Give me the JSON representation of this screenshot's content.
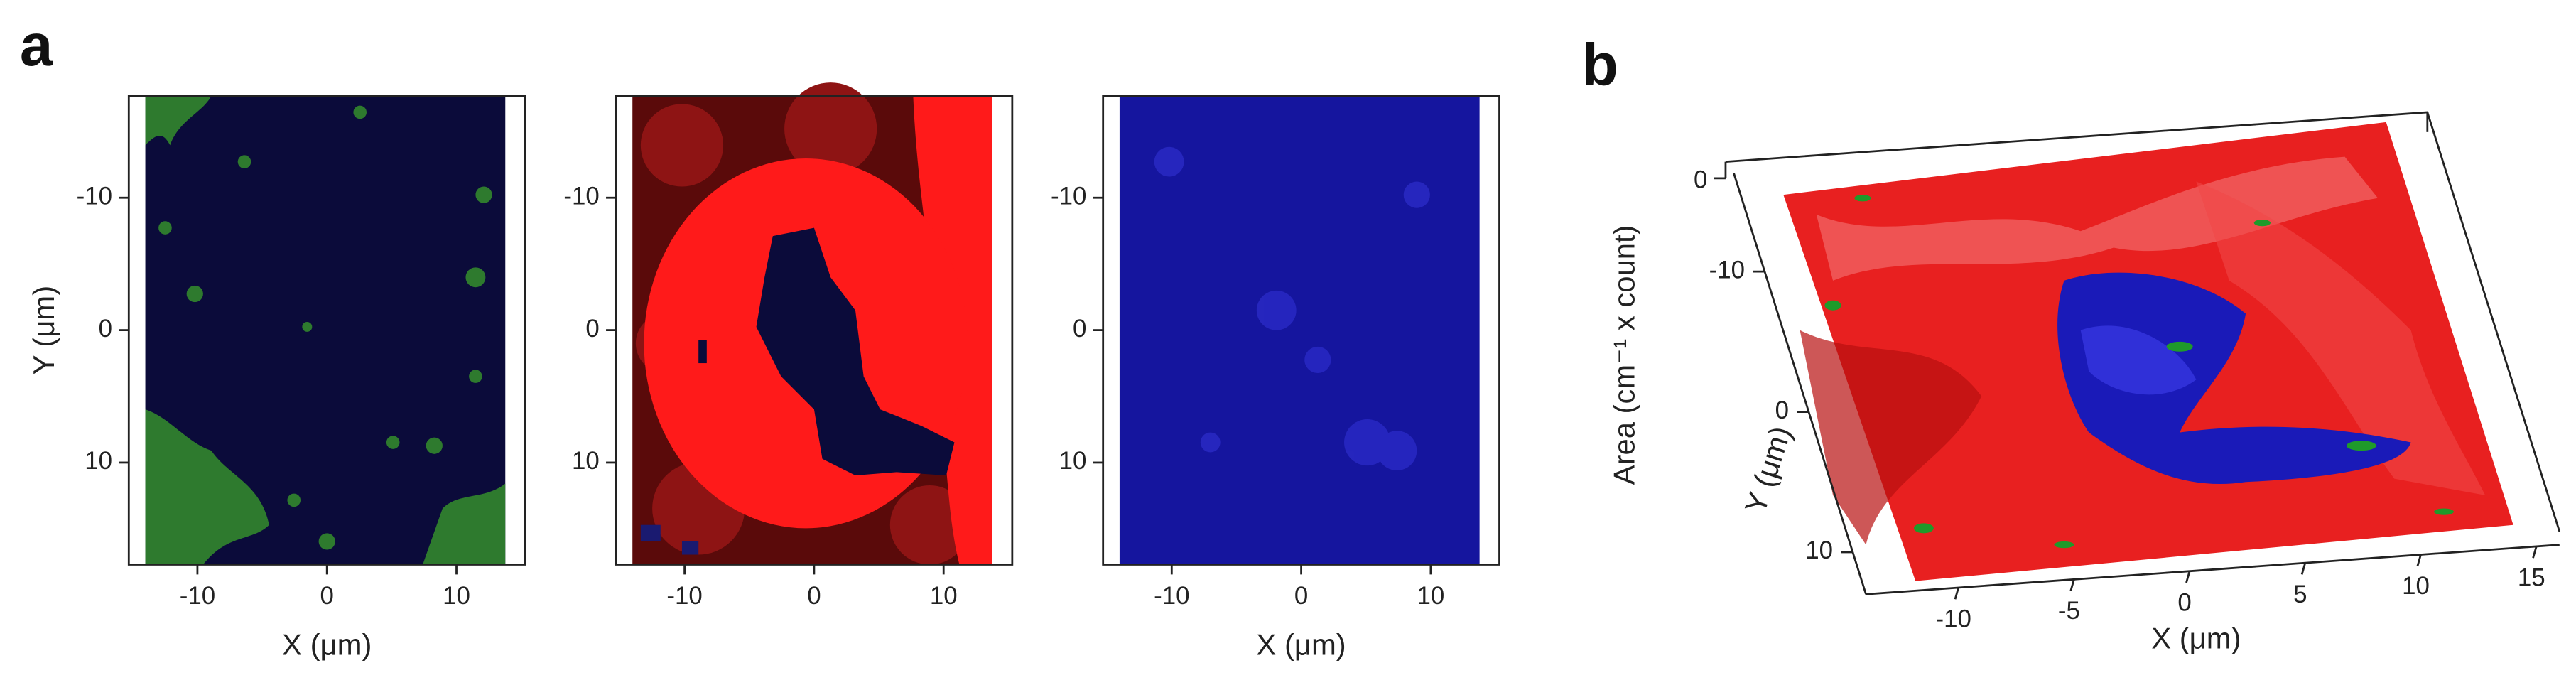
{
  "panel_a": {
    "label": "a",
    "y_label": "Y (μm)",
    "maps": [
      {
        "xlim": [
          -15.3,
          15.3
        ],
        "ylim": [
          -17.7,
          17.7
        ],
        "xticks": [
          -10,
          0,
          10
        ],
        "yticks": [
          -10,
          0,
          10
        ],
        "x_label": "X (μm)"
      },
      {
        "xlim": [
          -15.3,
          15.3
        ],
        "ylim": [
          -17.7,
          17.7
        ],
        "xticks": [
          -10,
          0,
          10
        ],
        "yticks": [
          -10,
          0,
          10
        ]
      },
      {
        "xlim": [
          -15.3,
          15.3
        ],
        "ylim": [
          -17.7,
          17.7
        ],
        "xticks": [
          -10,
          0,
          10
        ],
        "yticks": [
          -10,
          0,
          10
        ],
        "x_label": "X (μm)"
      }
    ]
  },
  "panel_b": {
    "label": "b",
    "z_label": "Area (cm⁻¹ x count)",
    "zticks": [
      0
    ],
    "y_label": "Y (μm)",
    "ylim": [
      -17,
      13
    ],
    "yticks": [
      -10,
      0,
      10
    ],
    "x_label": "X (μm)",
    "xlim": [
      -14,
      16
    ],
    "xticks": [
      -10,
      -5,
      0,
      5,
      10,
      15
    ]
  }
}
